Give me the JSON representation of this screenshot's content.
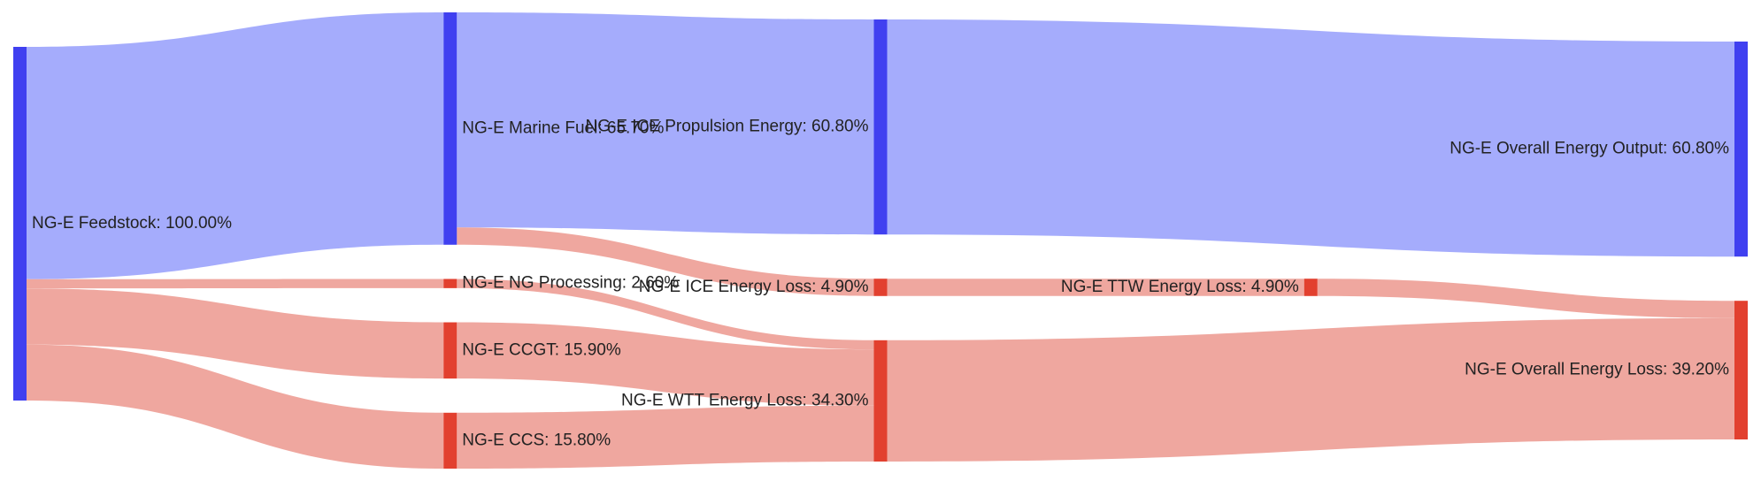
{
  "chart_data": {
    "type": "sankey",
    "node_colors": {
      "energy": "#4040f0",
      "loss": "#e2402f"
    },
    "link_colors": {
      "energy": "#a0a8fc",
      "loss": "#eea29a"
    },
    "nodes": [
      {
        "label": "NG-E Feedstock: 100.00%",
        "value": 100,
        "kind": "energy"
      },
      {
        "label": "NG-E Marine Fuel: 65.70%",
        "value": 65.7,
        "kind": "energy"
      },
      {
        "label": "NG-E NG Processing: 2.60%",
        "value": 2.6,
        "kind": "loss"
      },
      {
        "label": "NG-E CCGT: 15.90%",
        "value": 15.9,
        "kind": "loss"
      },
      {
        "label": "NG-E CCS: 15.80%",
        "value": 15.8,
        "kind": "loss"
      },
      {
        "label": "NG-E ICE Propulsion Energy: 60.80%",
        "value": 60.8,
        "kind": "energy"
      },
      {
        "label": "NG-E ICE Energy Loss: 4.90%",
        "value": 4.9,
        "kind": "loss"
      },
      {
        "label": "NG-E WTT Energy Loss: 34.30%",
        "value": 34.3,
        "kind": "loss"
      },
      {
        "label": "NG-E TTW Energy Loss: 4.90%",
        "value": 4.9,
        "kind": "loss"
      },
      {
        "label": "NG-E Overall Energy Output: 60.80%",
        "value": 60.8,
        "kind": "energy"
      },
      {
        "label": "NG-E Overall Energy Loss: 39.20%",
        "value": 39.2,
        "kind": "loss"
      }
    ],
    "links": [
      {
        "source": 0,
        "target": 1,
        "value": 65.7,
        "kind": "energy"
      },
      {
        "source": 0,
        "target": 2,
        "value": 2.6,
        "kind": "loss"
      },
      {
        "source": 0,
        "target": 3,
        "value": 15.9,
        "kind": "loss"
      },
      {
        "source": 0,
        "target": 4,
        "value": 15.8,
        "kind": "loss"
      },
      {
        "source": 1,
        "target": 5,
        "value": 60.8,
        "kind": "energy"
      },
      {
        "source": 1,
        "target": 6,
        "value": 4.9,
        "kind": "loss"
      },
      {
        "source": 2,
        "target": 7,
        "value": 2.6,
        "kind": "loss"
      },
      {
        "source": 3,
        "target": 7,
        "value": 15.9,
        "kind": "loss"
      },
      {
        "source": 4,
        "target": 7,
        "value": 15.8,
        "kind": "loss"
      },
      {
        "source": 5,
        "target": 9,
        "value": 60.8,
        "kind": "energy"
      },
      {
        "source": 6,
        "target": 8,
        "value": 4.9,
        "kind": "loss"
      },
      {
        "source": 8,
        "target": 10,
        "value": 4.9,
        "kind": "loss"
      },
      {
        "source": 7,
        "target": 10,
        "value": 34.3,
        "kind": "loss"
      }
    ]
  }
}
